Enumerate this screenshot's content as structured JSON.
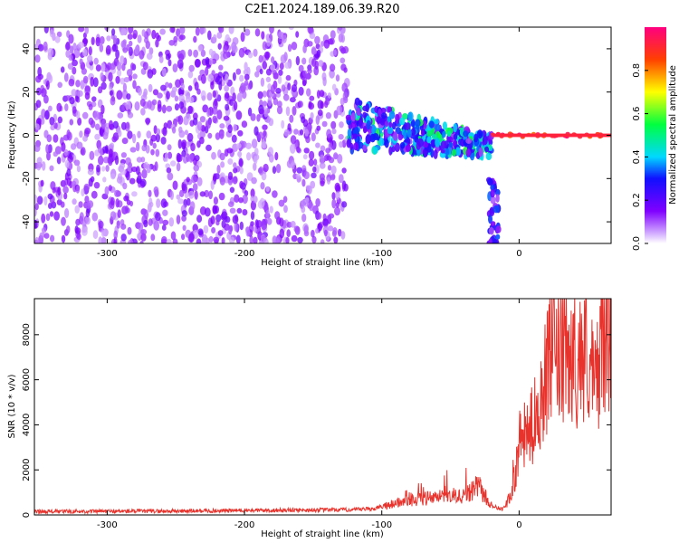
{
  "figure_title": "C2E1.2024.189.06.39.R20",
  "chart_data": [
    {
      "type": "heatmap",
      "xlabel": "Height of straight line (km)",
      "ylabel": "Frequency (Hz)",
      "xlim": [
        -353,
        67
      ],
      "ylim": [
        -50,
        50
      ],
      "x_ticks": [
        -300,
        -200,
        -100,
        0
      ],
      "y_ticks": [
        -40,
        -20,
        0,
        20,
        40
      ],
      "colorbar": {
        "label": "Normalized spectral amplitude",
        "range": [
          0,
          1
        ],
        "ticks": [
          "0.0",
          "0.2",
          "0.4",
          "0.6",
          "0.8"
        ]
      },
      "regions": [
        {
          "x_range": [
            -353,
            -125
          ],
          "freq_range": [
            -50,
            50
          ],
          "typical_amplitude": 0.15
        },
        {
          "x_range": [
            -125,
            -20
          ],
          "freq_range": [
            -12,
            12
          ],
          "typical_amplitude": 0.35,
          "peak_amplitude": 0.55
        },
        {
          "x_range": [
            -20,
            67
          ],
          "freq_range": [
            -1,
            1
          ],
          "typical_amplitude": 0.95
        },
        {
          "x_range": [
            -22,
            -15
          ],
          "freq_range": [
            -50,
            -20
          ],
          "typical_amplitude": 0.3
        }
      ]
    },
    {
      "type": "line",
      "xlabel": "Height of straight line (km)",
      "ylabel": "SNR (10 * v/v)",
      "xlim": [
        -353,
        67
      ],
      "ylim": [
        0,
        9600
      ],
      "x_ticks": [
        -300,
        -200,
        -100,
        0
      ],
      "y_ticks": [
        0,
        2000,
        4000,
        6000,
        8000
      ],
      "series": [
        {
          "color": "#e8322c",
          "x": [
            -353,
            -300,
            -250,
            -200,
            -150,
            -120,
            -105,
            -95,
            -80,
            -60,
            -45,
            -35,
            -30,
            -25,
            -20,
            -12,
            -5,
            0,
            5,
            10,
            20,
            25,
            30,
            40,
            50,
            55,
            60,
            67
          ],
          "values": [
            150,
            160,
            170,
            200,
            220,
            230,
            280,
            450,
            700,
            750,
            800,
            950,
            1300,
            850,
            400,
            250,
            900,
            3200,
            3500,
            4000,
            6200,
            7500,
            6800,
            6900,
            7200,
            5500,
            7800,
            8300
          ]
        }
      ]
    }
  ]
}
